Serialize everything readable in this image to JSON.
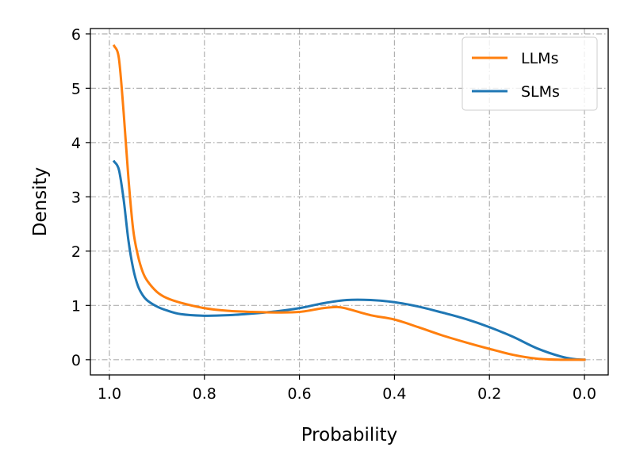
{
  "chart_data": {
    "type": "line",
    "title": "",
    "xlabel": "Probability",
    "ylabel": "Density",
    "xlim": [
      1.04,
      -0.05
    ],
    "ylim": [
      -0.28,
      6.1
    ],
    "x_reversed": true,
    "grid": true,
    "grid_style": "dash-dot",
    "legend_position": "top-right",
    "xticks": [
      1.0,
      0.8,
      0.6,
      0.4,
      0.2,
      0.0
    ],
    "xtick_labels": [
      "1.0",
      "0.8",
      "0.6",
      "0.4",
      "0.2",
      "0.0"
    ],
    "yticks": [
      0,
      1,
      2,
      3,
      4,
      5,
      6
    ],
    "ytick_labels": [
      "0",
      "1",
      "2",
      "3",
      "4",
      "5",
      "6"
    ],
    "series": [
      {
        "name": "LLMs",
        "color": "#ff7f0e",
        "x": [
          0.99,
          0.98,
          0.97,
          0.96,
          0.95,
          0.94,
          0.93,
          0.92,
          0.9,
          0.88,
          0.85,
          0.8,
          0.75,
          0.7,
          0.65,
          0.6,
          0.55,
          0.52,
          0.5,
          0.45,
          0.4,
          0.35,
          0.3,
          0.25,
          0.2,
          0.15,
          0.1,
          0.05,
          0.0
        ],
        "y": [
          5.78,
          5.55,
          4.55,
          3.35,
          2.4,
          1.92,
          1.62,
          1.45,
          1.25,
          1.14,
          1.05,
          0.95,
          0.9,
          0.88,
          0.87,
          0.88,
          0.95,
          0.97,
          0.94,
          0.82,
          0.74,
          0.6,
          0.45,
          0.32,
          0.2,
          0.09,
          0.02,
          0.0,
          0.0
        ]
      },
      {
        "name": "SLMs",
        "color": "#1f77b4",
        "x": [
          0.99,
          0.98,
          0.97,
          0.96,
          0.95,
          0.94,
          0.93,
          0.92,
          0.9,
          0.88,
          0.85,
          0.8,
          0.75,
          0.7,
          0.65,
          0.6,
          0.55,
          0.5,
          0.45,
          0.4,
          0.35,
          0.3,
          0.25,
          0.2,
          0.15,
          0.1,
          0.05,
          0.02,
          0.0
        ],
        "y": [
          3.65,
          3.5,
          2.95,
          2.2,
          1.68,
          1.36,
          1.19,
          1.09,
          0.98,
          0.91,
          0.84,
          0.81,
          0.82,
          0.85,
          0.89,
          0.95,
          1.04,
          1.1,
          1.1,
          1.06,
          0.98,
          0.87,
          0.75,
          0.6,
          0.42,
          0.21,
          0.06,
          0.01,
          0.0
        ]
      }
    ]
  }
}
